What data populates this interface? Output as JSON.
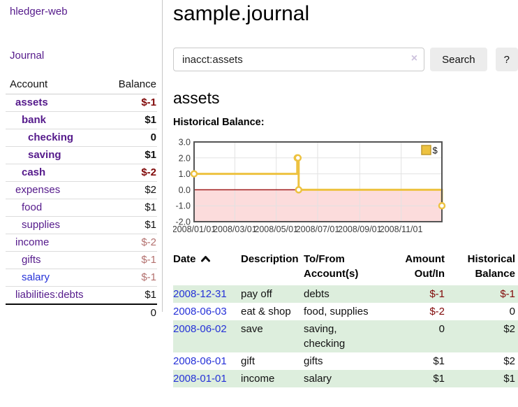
{
  "app": {
    "title": "hledger-web"
  },
  "sidebar": {
    "nav_journal": "Journal",
    "accounts": {
      "headers": [
        "Account",
        "Balance"
      ],
      "rows": [
        {
          "name": "assets",
          "depth": 1,
          "bold": true,
          "blue": false,
          "balance": "$-1",
          "balance_class": "neg-strong"
        },
        {
          "name": "bank",
          "depth": 2,
          "bold": true,
          "blue": false,
          "balance": "$1",
          "balance_class": ""
        },
        {
          "name": "checking",
          "depth": 3,
          "bold": true,
          "blue": false,
          "balance": "0",
          "balance_class": ""
        },
        {
          "name": "saving",
          "depth": 3,
          "bold": true,
          "blue": false,
          "balance": "$1",
          "balance_class": ""
        },
        {
          "name": "cash",
          "depth": 2,
          "bold": true,
          "blue": false,
          "balance": "$-2",
          "balance_class": "neg-strong"
        },
        {
          "name": "expenses",
          "depth": 1,
          "bold": false,
          "blue": false,
          "balance": "$2",
          "balance_class": ""
        },
        {
          "name": "food",
          "depth": 2,
          "bold": false,
          "blue": false,
          "balance": "$1",
          "balance_class": ""
        },
        {
          "name": "supplies",
          "depth": 2,
          "bold": false,
          "blue": false,
          "balance": "$1",
          "balance_class": ""
        },
        {
          "name": "income",
          "depth": 1,
          "bold": false,
          "blue": false,
          "balance": "$-2",
          "balance_class": "neg-soft"
        },
        {
          "name": "gifts",
          "depth": 2,
          "bold": false,
          "blue": false,
          "balance": "$-1",
          "balance_class": "neg-soft"
        },
        {
          "name": "salary",
          "depth": 2,
          "bold": false,
          "blue": true,
          "balance": "$-1",
          "balance_class": "neg-soft"
        },
        {
          "name": "liabilities:debts",
          "depth": 1,
          "bold": false,
          "blue": false,
          "balance": "$1",
          "balance_class": ""
        }
      ],
      "total": "0"
    }
  },
  "main": {
    "title": "sample.journal",
    "search": {
      "value": "inacct:assets",
      "clear_icon": "×",
      "button_label": "Search",
      "help_label": "?"
    },
    "account_heading": "assets"
  },
  "chart_data": {
    "type": "line",
    "title": "Historical Balance:",
    "step": true,
    "xlim": [
      "2008-01-01",
      "2008-12-31"
    ],
    "ylim": [
      -2,
      3
    ],
    "x_ticks": [
      {
        "date": "2008-01-01",
        "label": "2008/01/01"
      },
      {
        "date": "2008-03-01",
        "label": "2008/03/01"
      },
      {
        "date": "2008-05-01",
        "label": "2008/05/01"
      },
      {
        "date": "2008-07-01",
        "label": "2008/07/01"
      },
      {
        "date": "2008-09-01",
        "label": "2008/09/01"
      },
      {
        "date": "2008-11-01",
        "label": "2008/11/01"
      }
    ],
    "y_ticks": [
      {
        "value": 3,
        "label": "3.0"
      },
      {
        "value": 2,
        "label": "2.0"
      },
      {
        "value": 1,
        "label": "1.0"
      },
      {
        "value": 0,
        "label": "0.0"
      },
      {
        "value": -1,
        "label": "-1.0"
      },
      {
        "value": -2,
        "label": "-2.0"
      }
    ],
    "series": [
      {
        "name": "$",
        "color": "#edc240",
        "points": [
          {
            "date": "2008-01-01",
            "value": 1
          },
          {
            "date": "2008-06-01",
            "value": 2
          },
          {
            "date": "2008-06-02",
            "value": 2
          },
          {
            "date": "2008-06-03",
            "value": 0
          },
          {
            "date": "2008-12-31",
            "value": -1
          }
        ]
      }
    ],
    "legend_position": "top-right",
    "grid": true,
    "negative_region_shaded": true
  },
  "transactions": {
    "headers": [
      "Date",
      "Description",
      "To/From\nAccount(s)",
      "Amount\nOut/In",
      "Historical\nBalance"
    ],
    "sort": "date-ascending",
    "rows": [
      {
        "date": "2008-12-31",
        "description": "pay off",
        "accounts": "debts",
        "amount": "$-1",
        "amount_negative": true,
        "balance": "$-1",
        "balance_negative": true
      },
      {
        "date": "2008-06-03",
        "description": "eat & shop",
        "accounts": "food, supplies",
        "amount": "$-2",
        "amount_negative": true,
        "balance": "0",
        "balance_negative": false
      },
      {
        "date": "2008-06-02",
        "description": "save",
        "accounts": "saving, checking",
        "amount": "0",
        "amount_negative": false,
        "balance": "$2",
        "balance_negative": false
      },
      {
        "date": "2008-06-01",
        "description": "gift",
        "accounts": "gifts",
        "amount": "$1",
        "amount_negative": false,
        "balance": "$2",
        "balance_negative": false
      },
      {
        "date": "2008-01-01",
        "description": "income",
        "accounts": "salary",
        "amount": "$1",
        "amount_negative": false,
        "balance": "$1",
        "balance_negative": false
      }
    ]
  },
  "colors": {
    "link_purple": "#551a8b",
    "link_blue": "#2531d8",
    "negative_strong": "#800808",
    "negative_soft": "#b3706e",
    "stripe_green": "#ddeedd",
    "button_bg": "#ececec",
    "chart_line": "#edc240",
    "chart_negative_region": "#fcdcdc",
    "chart_zero_line": "#a11b1b",
    "chart_border": "#545454",
    "chart_grid": "#e2e2e2",
    "legend_border": "#c09a2f"
  }
}
